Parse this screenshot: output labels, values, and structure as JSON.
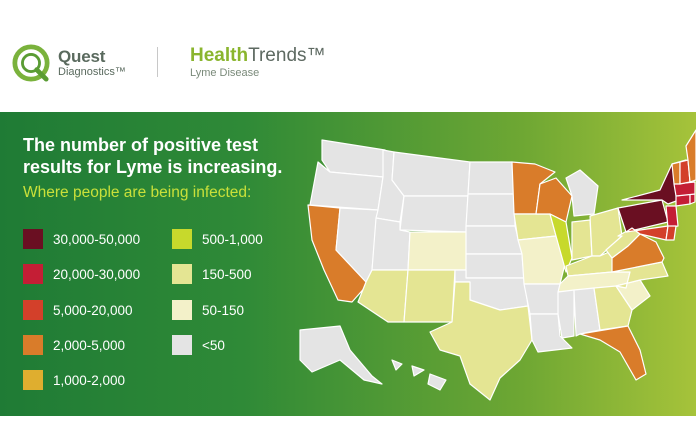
{
  "brand": {
    "name": "Quest",
    "sub": "Diagnostics™"
  },
  "report": {
    "title_bold": "Health",
    "title_light": "Trends™",
    "subtitle": "Lyme Disease"
  },
  "headline": "The number of positive test results for Lyme is increasing.",
  "subheading": "Where people are being infected:",
  "legend": [
    {
      "label": "30,000-50,000",
      "color": "#6a0f22"
    },
    {
      "label": "20,000-30,000",
      "color": "#c41e35"
    },
    {
      "label": "5,000-20,000",
      "color": "#d3402a"
    },
    {
      "label": "2,000-5,000",
      "color": "#d97c2a"
    },
    {
      "label": "1,000-2,000",
      "color": "#dfae2f"
    },
    {
      "label": "500-1,000",
      "color": "#c7d92c"
    },
    {
      "label": "150-500",
      "color": "#e4e593"
    },
    {
      "label": "50-150",
      "color": "#f3f1c9"
    },
    {
      "label": "<50",
      "color": "#e4e4e4"
    }
  ],
  "map": {
    "states": {
      "WA": "<50",
      "OR": "<50",
      "CA": "2,000-5,000",
      "NV": "<50",
      "ID": "<50",
      "MT": "<50",
      "WY": "<50",
      "UT": "<50",
      "AZ": "150-500",
      "CO": "50-150",
      "NM": "150-500",
      "ND": "<50",
      "SD": "<50",
      "NE": "<50",
      "KS": "<50",
      "OK": "<50",
      "TX": "150-500",
      "MN": "2,000-5,000",
      "IA": "150-500",
      "MO": "50-150",
      "AR": "<50",
      "LA": "<50",
      "WI": "2,000-5,000",
      "IL": "500-1,000",
      "MI": "<50",
      "IN": "150-500",
      "OH": "150-500",
      "KY": "150-500",
      "TN": "50-150",
      "MS": "<50",
      "AL": "<50",
      "GA": "150-500",
      "FL": "2,000-5,000",
      "SC": "50-150",
      "NC": "150-500",
      "VA": "2,000-5,000",
      "WV": "150-500",
      "PA": "30,000-50,000",
      "NY": "30,000-50,000",
      "NJ": "20,000-30,000",
      "MD": "5,000-20,000",
      "DE": "5,000-20,000",
      "CT": "20,000-30,000",
      "RI": "20,000-30,000",
      "MA": "20,000-30,000",
      "VT": "2,000-5,000",
      "NH": "5,000-20,000",
      "ME": "2,000-5,000",
      "AK": "<50",
      "HI": "<50"
    }
  }
}
